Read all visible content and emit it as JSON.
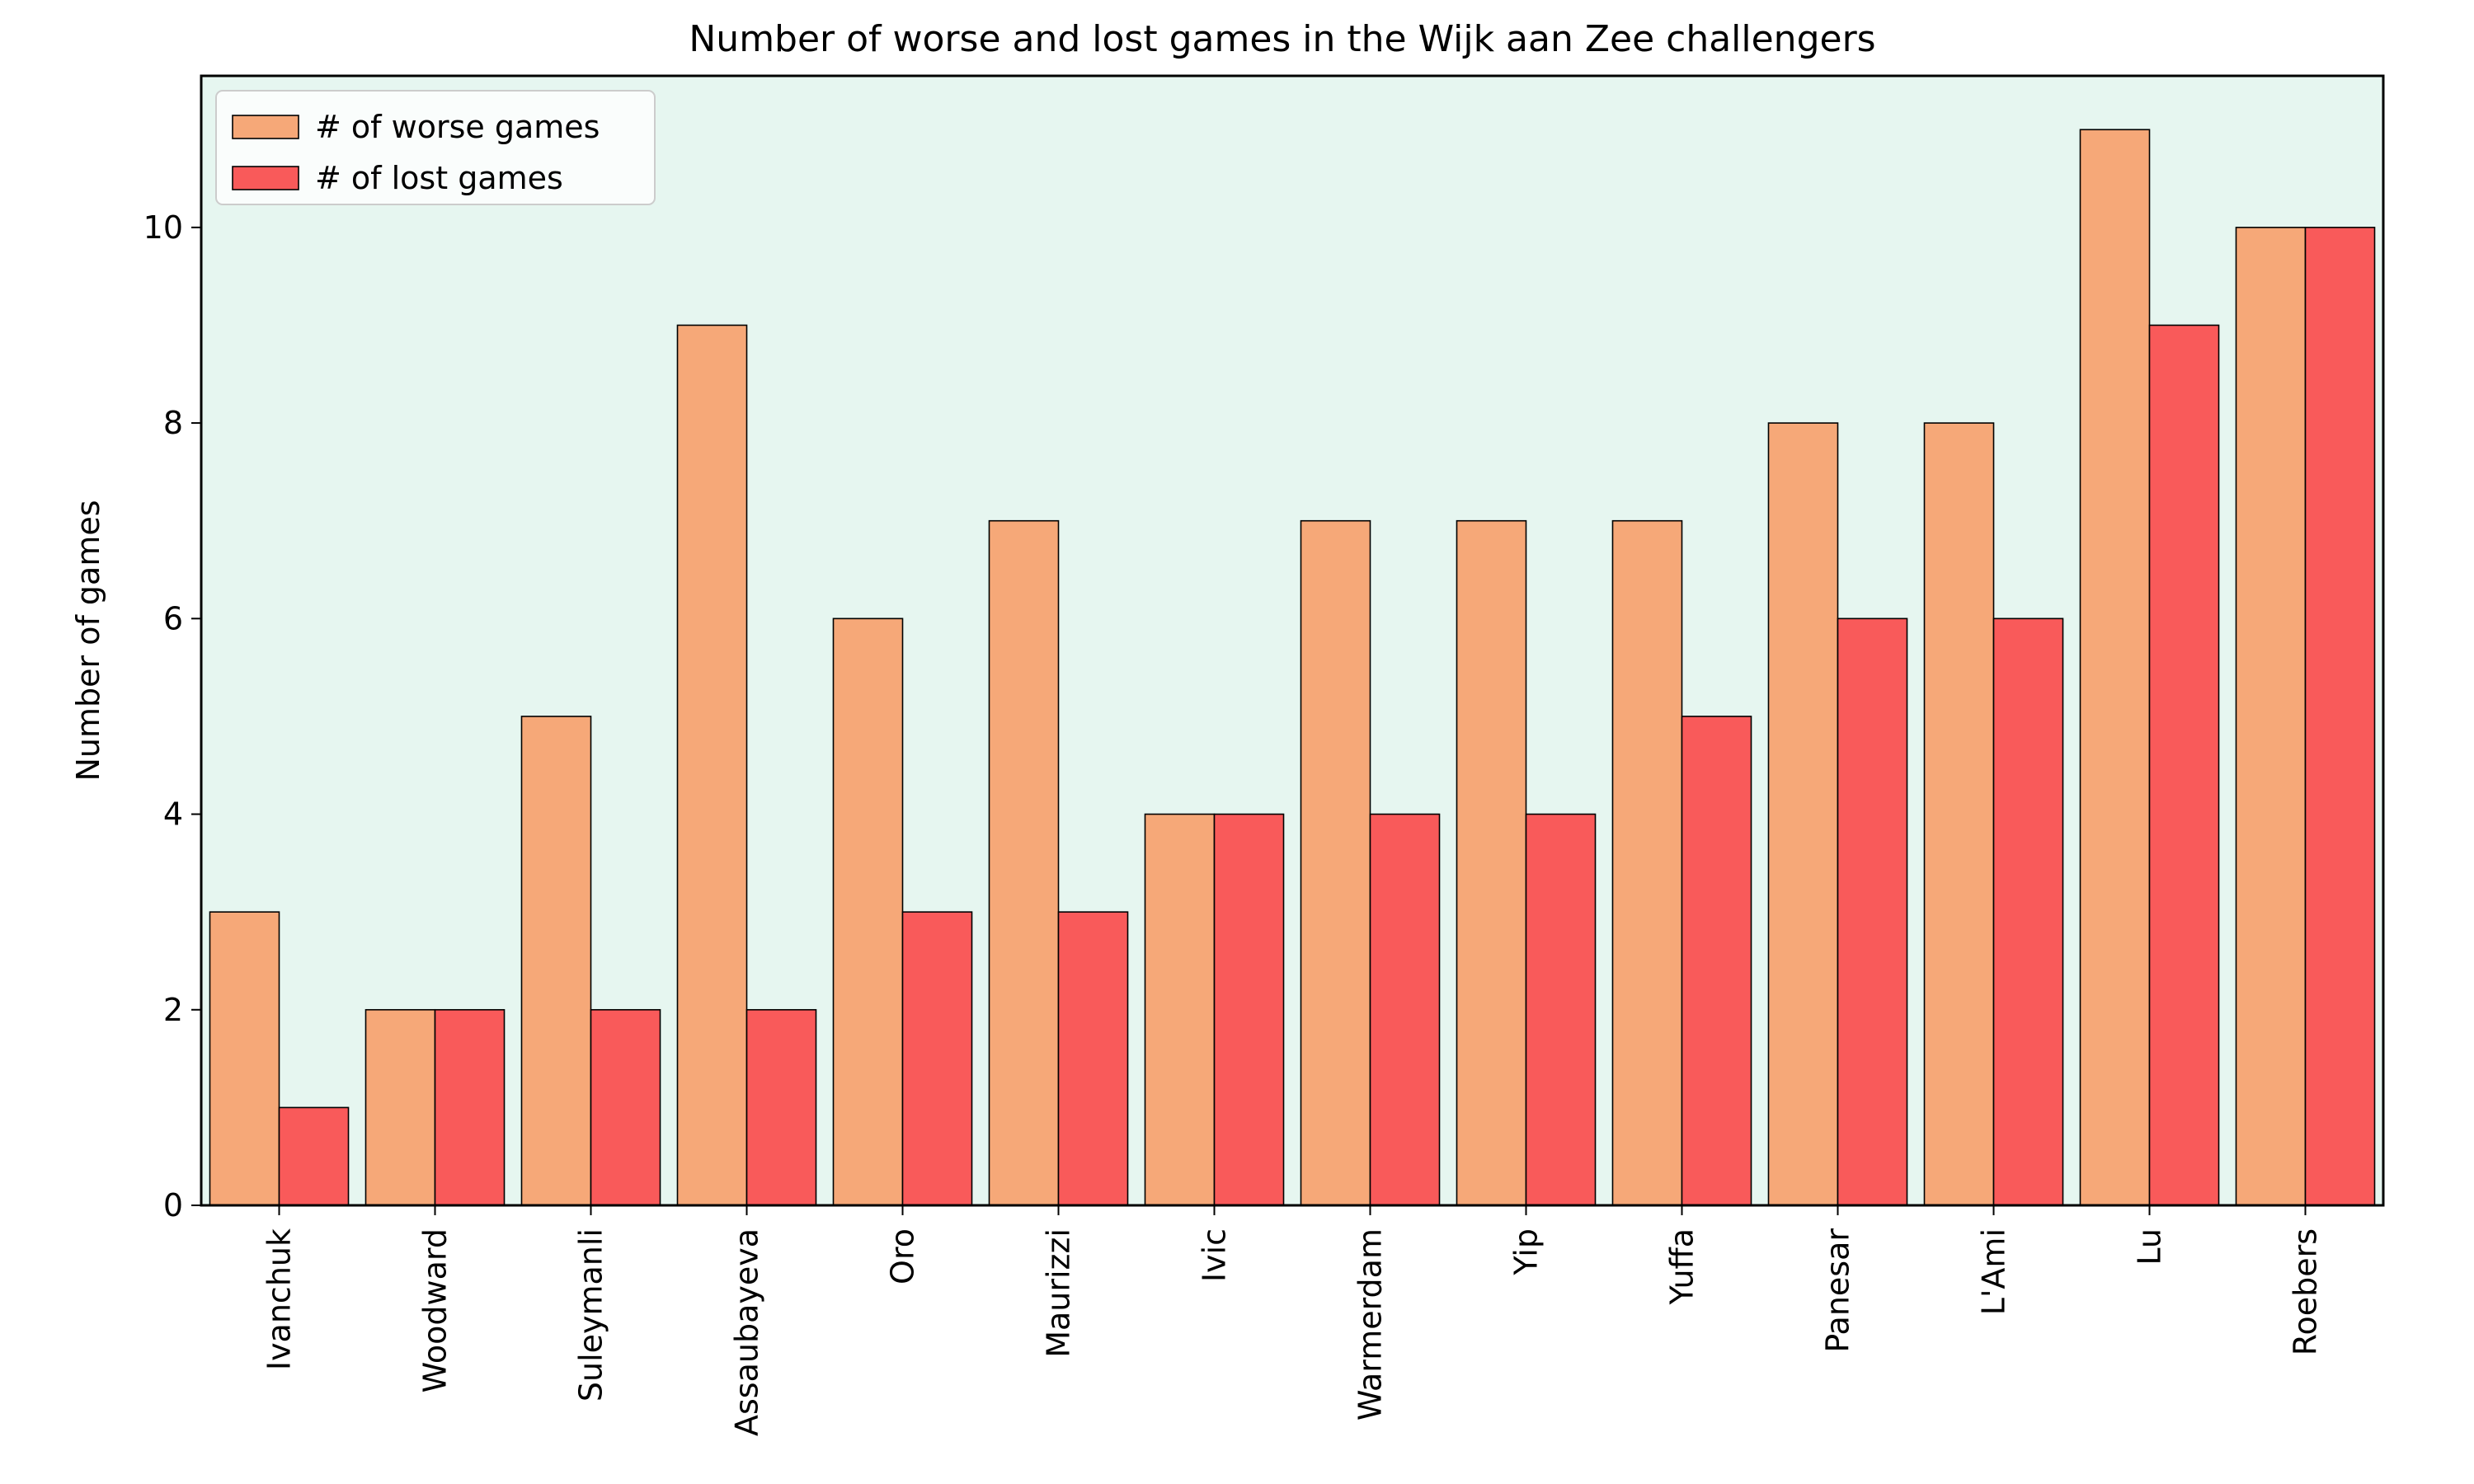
{
  "chart_data": {
    "type": "bar",
    "title": "Number of worse and lost games in the Wijk aan Zee challengers",
    "xlabel": "",
    "ylabel": "Number of games",
    "ylim": [
      0,
      11.55
    ],
    "yticks": [
      0,
      2,
      4,
      6,
      8,
      10
    ],
    "ytick_labels": [
      "0",
      "2",
      "4",
      "6",
      "8",
      "10"
    ],
    "categories": [
      "Ivanchuk",
      "Woodward",
      "Suleymanli",
      "Assaubayeva",
      "Oro",
      "Maurizzi",
      "Ivic",
      "Warmerdam",
      "Yip",
      "Yuffa",
      "Panesar",
      "L'Ami",
      "Lu",
      "Roebers"
    ],
    "series": [
      {
        "name": "# of worse games",
        "color": "#f6a878",
        "values": [
          3,
          2,
          5,
          9,
          6,
          7,
          4,
          7,
          7,
          7,
          8,
          8,
          11,
          10
        ]
      },
      {
        "name": "# of lost games",
        "color": "#f95a5a",
        "values": [
          1,
          2,
          2,
          2,
          3,
          3,
          4,
          4,
          4,
          5,
          6,
          6,
          9,
          10
        ]
      }
    ],
    "legend_position": "top-left",
    "plot_background": "#e6f6f0",
    "edge_color": "#000000"
  }
}
